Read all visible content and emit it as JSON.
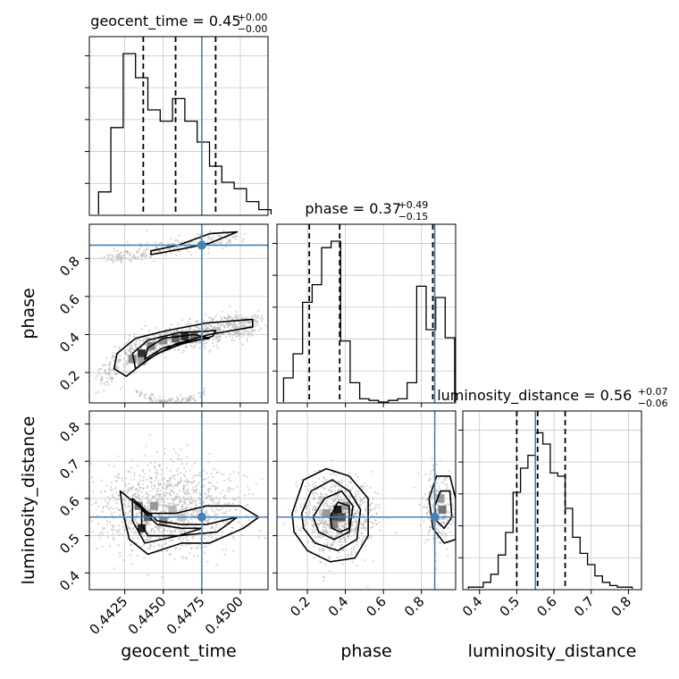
{
  "chart_data": {
    "type": "corner",
    "parameters": [
      "geocent_time",
      "phase",
      "luminosity_distance"
    ],
    "truths": {
      "geocent_time": 0.4475,
      "phase": 0.87,
      "luminosity_distance": 0.55
    },
    "ranges": {
      "geocent_time": [
        0.4402,
        0.4518
      ],
      "phase": [
        0.04,
        0.98
      ],
      "luminosity_distance": [
        0.355,
        0.835
      ]
    },
    "titles": [
      {
        "base": "geocent_time = 0.45",
        "plus": "+0.00",
        "minus": "−0.00"
      },
      {
        "base": "phase = 0.37",
        "plus": "+0.49",
        "minus": "−0.15"
      },
      {
        "base": "luminosity_distance = 0.56",
        "plus": "+0.07",
        "minus": "−0.06"
      }
    ],
    "quantiles": {
      "geocent_time": [
        0.4437,
        0.4458,
        0.4484
      ],
      "phase": [
        0.21,
        0.37,
        0.86
      ],
      "luminosity_distance": [
        0.5,
        0.556,
        0.63
      ]
    },
    "histograms": {
      "geocent_time": {
        "bins": [
          0.4412,
          0.442,
          0.4428,
          0.4436,
          0.4444,
          0.4452,
          0.446,
          0.4468,
          0.4476,
          0.4484,
          0.4492,
          0.45,
          0.4508,
          0.4516
        ],
        "counts": [
          0.14,
          0.54,
          1.0,
          0.85,
          0.65,
          0.58,
          0.72,
          0.58,
          0.45,
          0.3,
          0.2,
          0.16,
          0.08,
          0.03
        ]
      },
      "phase": {
        "bins": [
          0.1,
          0.15,
          0.2,
          0.25,
          0.3,
          0.35,
          0.4,
          0.45,
          0.5,
          0.55,
          0.6,
          0.65,
          0.7,
          0.75,
          0.8,
          0.85,
          0.9,
          0.95
        ],
        "counts": [
          0.15,
          0.3,
          0.62,
          0.73,
          0.96,
          1.0,
          0.38,
          0.12,
          0.02,
          0.01,
          0.0,
          0.01,
          0.02,
          0.12,
          0.72,
          0.45,
          0.65,
          0.4
        ]
      },
      "luminosity_distance": {
        "bins": [
          0.38,
          0.4,
          0.42,
          0.44,
          0.46,
          0.48,
          0.5,
          0.52,
          0.54,
          0.56,
          0.58,
          0.6,
          0.62,
          0.64,
          0.66,
          0.68,
          0.7,
          0.72,
          0.74,
          0.76,
          0.78,
          0.8
        ],
        "counts": [
          0.01,
          0.01,
          0.04,
          0.09,
          0.21,
          0.35,
          0.6,
          0.75,
          0.83,
          0.97,
          0.9,
          0.72,
          0.7,
          0.5,
          0.32,
          0.22,
          0.15,
          0.08,
          0.04,
          0.02,
          0.01,
          0.01
        ]
      }
    },
    "ticks": {
      "geocent_time": [
        "0.4425",
        "0.4450",
        "0.4475",
        "0.4500"
      ],
      "phase": [
        "0.2",
        "0.4",
        "0.6",
        "0.8"
      ],
      "luminosity_distance": [
        "0.4",
        "0.5",
        "0.6",
        "0.7",
        "0.8"
      ]
    },
    "tick_values": {
      "geocent_time": [
        0.4425,
        0.445,
        0.4475,
        0.45
      ],
      "phase": [
        0.2,
        0.4,
        0.6,
        0.8
      ],
      "luminosity_distance": [
        0.4,
        0.5,
        0.6,
        0.7,
        0.8
      ]
    },
    "xlabels": [
      "geocent_time",
      "phase",
      "luminosity_distance"
    ],
    "ylabels": [
      "phase",
      "luminosity_distance"
    ],
    "grid": true,
    "colors": {
      "truth": "#4682b4",
      "hist": "#000000",
      "contour": "#000000",
      "points": "#b0b0b0",
      "grid": "#c8c8c8"
    }
  }
}
